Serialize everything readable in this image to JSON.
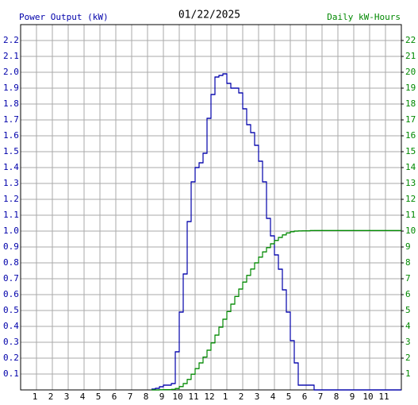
{
  "chart_data": {
    "type": "step",
    "title": "01/22/2025",
    "ylabel": "Power Output (kW)",
    "y2label": "Daily kW-Hours",
    "x": [
      8.25,
      8.5,
      8.75,
      9,
      9.25,
      9.5,
      9.75,
      10,
      10.25,
      10.5,
      10.75,
      11,
      11.25,
      11.5,
      11.75,
      12,
      12.25,
      12.5,
      12.75,
      13,
      13.25,
      13.5,
      13.75,
      14,
      14.25,
      14.5,
      14.75,
      15,
      15.25,
      15.5,
      15.75,
      16,
      16.25,
      16.5,
      16.75,
      17,
      17.25,
      17.5,
      17.75,
      18,
      18.25,
      18.5,
      24
    ],
    "series": [
      {
        "name": "Power Output (kW)",
        "color": "#0000aa",
        "values": [
          0.005,
          0.01,
          0.02,
          0.03,
          0.03,
          0.04,
          0.24,
          0.49,
          0.73,
          1.06,
          1.31,
          1.4,
          1.43,
          1.49,
          1.71,
          1.86,
          1.97,
          1.98,
          1.99,
          1.93,
          1.9,
          1.9,
          1.87,
          1.77,
          1.67,
          1.62,
          1.54,
          1.44,
          1.31,
          1.08,
          0.97,
          0.85,
          0.76,
          0.63,
          0.49,
          0.31,
          0.17,
          0.03,
          0.03,
          0.03,
          0.03,
          0,
          null
        ]
      },
      {
        "name": "Daily kW-Hours",
        "color": "#008800",
        "axis": "y2",
        "values": [
          0,
          0,
          0.01,
          0.02,
          0.02,
          0.03,
          0.09,
          0.21,
          0.4,
          0.66,
          0.99,
          1.34,
          1.7,
          2.07,
          2.5,
          2.96,
          3.45,
          3.95,
          4.45,
          4.93,
          5.4,
          5.88,
          6.35,
          6.79,
          7.21,
          7.61,
          8.0,
          8.36,
          8.69,
          8.96,
          9.2,
          9.41,
          9.6,
          9.76,
          9.88,
          9.96,
          10.0,
          10.01,
          10.02,
          10.02,
          10.03,
          10.03,
          10.03
        ]
      }
    ],
    "xlim": [
      0,
      24
    ],
    "xticks": [
      1,
      2,
      3,
      4,
      5,
      6,
      7,
      8,
      9,
      10,
      11,
      12,
      {
        "value": 13,
        "label": "1"
      },
      {
        "value": 14,
        "label": "2"
      },
      {
        "value": 15,
        "label": "3"
      },
      {
        "value": 16,
        "label": "4"
      },
      {
        "value": 17,
        "label": "5"
      },
      {
        "value": 18,
        "label": "6"
      },
      {
        "value": 19,
        "label": "7"
      },
      {
        "value": 20,
        "label": "8"
      },
      {
        "value": 21,
        "label": "9"
      },
      {
        "value": 22,
        "label": "10"
      },
      {
        "value": 23,
        "label": "11"
      }
    ],
    "ylim": [
      0,
      2.3
    ],
    "yticks": [
      0.1,
      0.2,
      0.3,
      0.4,
      0.5,
      0.6,
      0.7,
      0.8,
      0.9,
      {
        "value": 1.0,
        "label": "1.0"
      },
      1.1,
      1.2,
      1.3,
      1.4,
      1.5,
      1.6,
      1.7,
      1.8,
      1.9,
      {
        "value": 2.0,
        "label": "2.0"
      },
      2.1,
      2.2
    ],
    "y2lim": [
      0,
      23
    ],
    "y2ticks": [
      1,
      2,
      3,
      4,
      5,
      6,
      7,
      8,
      9,
      10,
      11,
      12,
      13,
      14,
      15,
      16,
      17,
      18,
      19,
      20,
      21,
      22
    ],
    "grid": true
  }
}
